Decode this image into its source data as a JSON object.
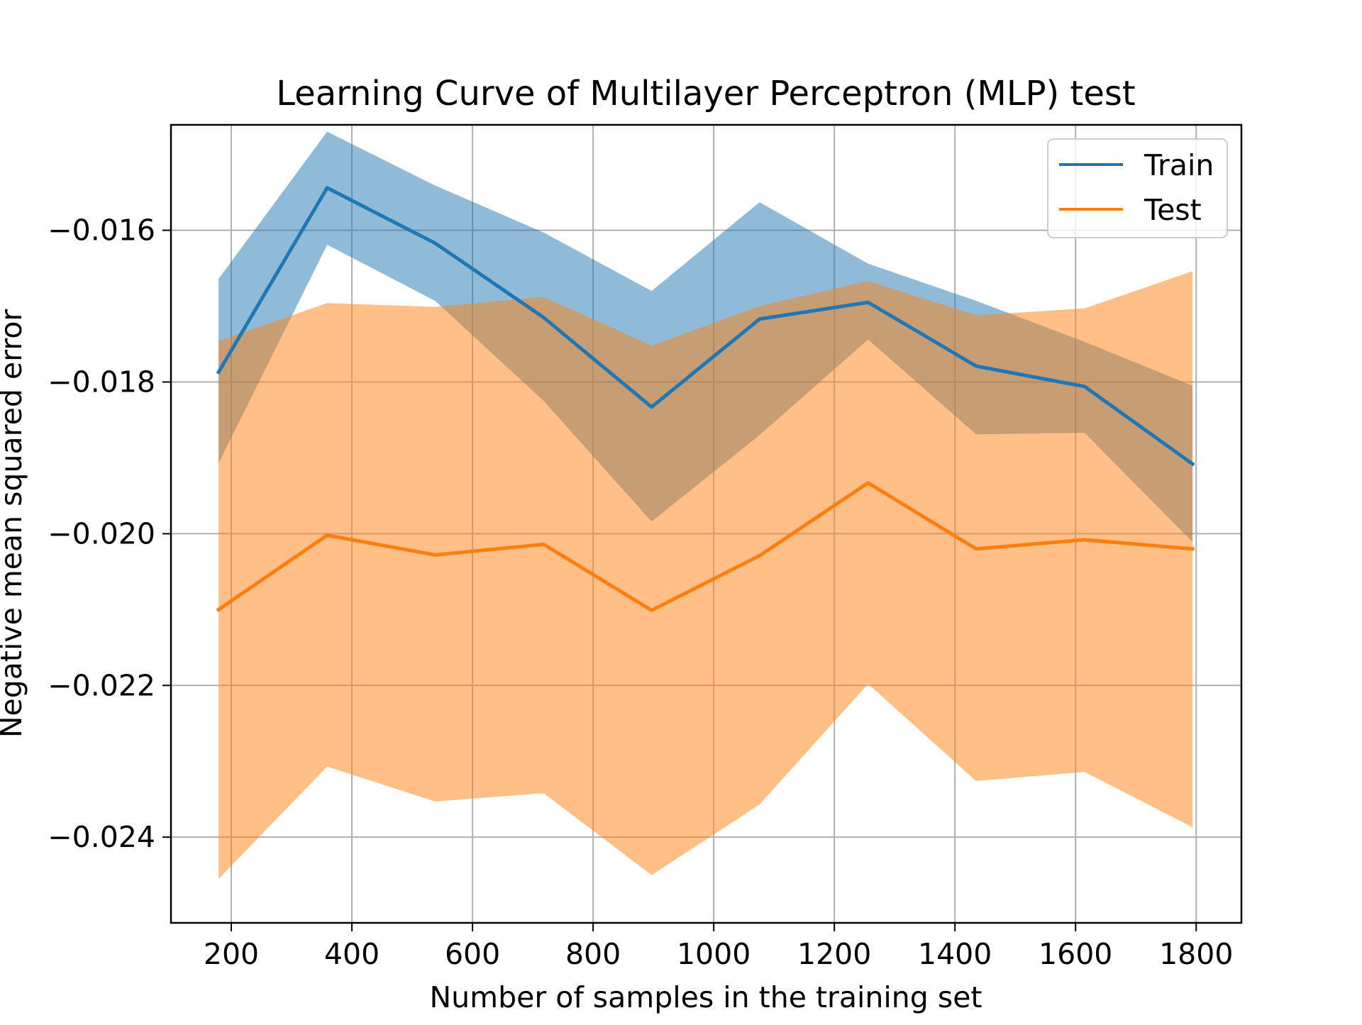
{
  "chart_data": {
    "type": "line",
    "title": "Learning Curve of Multilayer Perceptron (MLP) test",
    "xlabel": "Number of samples in the training set",
    "ylabel": "Negative mean squared error",
    "xlim": [
      100,
      1875
    ],
    "ylim": [
      -0.02513,
      -0.01461
    ],
    "xticks": [
      200,
      400,
      600,
      800,
      1000,
      1200,
      1400,
      1600,
      1800
    ],
    "xtick_labels": [
      "200",
      "400",
      "600",
      "800",
      "1000",
      "1200",
      "1400",
      "1600",
      "1800"
    ],
    "yticks": [
      -0.016,
      -0.018,
      -0.02,
      -0.022,
      -0.024
    ],
    "ytick_labels": [
      "−0.016",
      "−0.018",
      "−0.020",
      "−0.022",
      "−0.024"
    ],
    "grid": true,
    "legend_position": "top-right",
    "x": [
      179,
      359,
      538,
      718,
      897,
      1076,
      1256,
      1435,
      1615,
      1794
    ],
    "series": [
      {
        "name": "Train",
        "color": "#1f77b4",
        "fill_color": "#1f77b4",
        "fill_opacity": 0.5,
        "values": [
          -0.01787,
          -0.01544,
          -0.01617,
          -0.01715,
          -0.01833,
          -0.01717,
          -0.01695,
          -0.01779,
          -0.01806,
          -0.01908
        ],
        "upper": [
          -0.01664,
          -0.0147,
          -0.01541,
          -0.01603,
          -0.0168,
          -0.01563,
          -0.01644,
          -0.01693,
          -0.01747,
          -0.01805
        ],
        "lower": [
          -0.01907,
          -0.01619,
          -0.01693,
          -0.01825,
          -0.01984,
          -0.0187,
          -0.01744,
          -0.01869,
          -0.01867,
          -0.02011
        ]
      },
      {
        "name": "Test",
        "color": "#ff7f0e",
        "fill_color": "#ff7f0e",
        "fill_opacity": 0.5,
        "values": [
          -0.021,
          -0.02002,
          -0.02028,
          -0.02014,
          -0.02101,
          -0.02029,
          -0.01933,
          -0.0202,
          -0.02008,
          -0.0202
        ],
        "upper": [
          -0.01746,
          -0.01696,
          -0.01701,
          -0.01688,
          -0.01752,
          -0.017,
          -0.01667,
          -0.01712,
          -0.01703,
          -0.01654
        ],
        "lower": [
          -0.02455,
          -0.02307,
          -0.02353,
          -0.02342,
          -0.0245,
          -0.02357,
          -0.02198,
          -0.02326,
          -0.02314,
          -0.02387
        ]
      }
    ]
  }
}
